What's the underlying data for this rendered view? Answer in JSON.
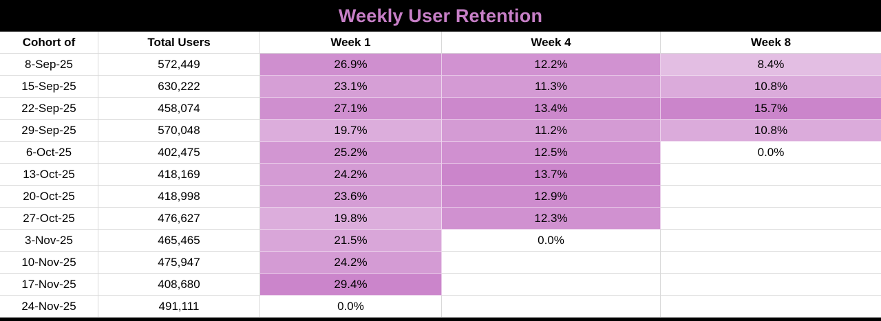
{
  "title_bar": {
    "title": "Weekly User Retention"
  },
  "colors": {
    "title_text": "#C77FC7",
    "title_bar_bg": "#000000",
    "bottom_bar_bg": "#000000",
    "heat_min": "#FFFFFF",
    "heat_max": "#CB85CB",
    "gridline": "#D9D9D9",
    "cell_text": "#000000"
  },
  "chart_data": {
    "type": "heatmap",
    "title": "Weekly User Retention",
    "columns": [
      "Cohort of",
      "Total Users",
      "Week 1",
      "Week 4",
      "Week 8"
    ],
    "value_format": "percent_1dp",
    "heat_scale": {
      "min_color": "#FFFFFF",
      "max_color": "#CB85CB",
      "scaling": "per-column-linear-from-zero",
      "column_max": {
        "week1": 29.4,
        "week4": 13.7,
        "week8": 15.7
      }
    },
    "rows": [
      {
        "cohort": "8-Sep-25",
        "total_users": "572,449",
        "week1": 26.9,
        "week4": 12.2,
        "week8": 8.4
      },
      {
        "cohort": "15-Sep-25",
        "total_users": "630,222",
        "week1": 23.1,
        "week4": 11.3,
        "week8": 10.8
      },
      {
        "cohort": "22-Sep-25",
        "total_users": "458,074",
        "week1": 27.1,
        "week4": 13.4,
        "week8": 15.7
      },
      {
        "cohort": "29-Sep-25",
        "total_users": "570,048",
        "week1": 19.7,
        "week4": 11.2,
        "week8": 10.8
      },
      {
        "cohort": "6-Oct-25",
        "total_users": "402,475",
        "week1": 25.2,
        "week4": 12.5,
        "week8": 0.0
      },
      {
        "cohort": "13-Oct-25",
        "total_users": "418,169",
        "week1": 24.2,
        "week4": 13.7,
        "week8": null
      },
      {
        "cohort": "20-Oct-25",
        "total_users": "418,998",
        "week1": 23.6,
        "week4": 12.9,
        "week8": null
      },
      {
        "cohort": "27-Oct-25",
        "total_users": "476,627",
        "week1": 19.8,
        "week4": 12.3,
        "week8": null
      },
      {
        "cohort": "3-Nov-25",
        "total_users": "465,465",
        "week1": 21.5,
        "week4": 0.0,
        "week8": null
      },
      {
        "cohort": "10-Nov-25",
        "total_users": "475,947",
        "week1": 24.2,
        "week4": null,
        "week8": null
      },
      {
        "cohort": "17-Nov-25",
        "total_users": "408,680",
        "week1": 29.4,
        "week4": null,
        "week8": null
      },
      {
        "cohort": "24-Nov-25",
        "total_users": "491,111",
        "week1": 0.0,
        "week4": null,
        "week8": null
      }
    ]
  }
}
